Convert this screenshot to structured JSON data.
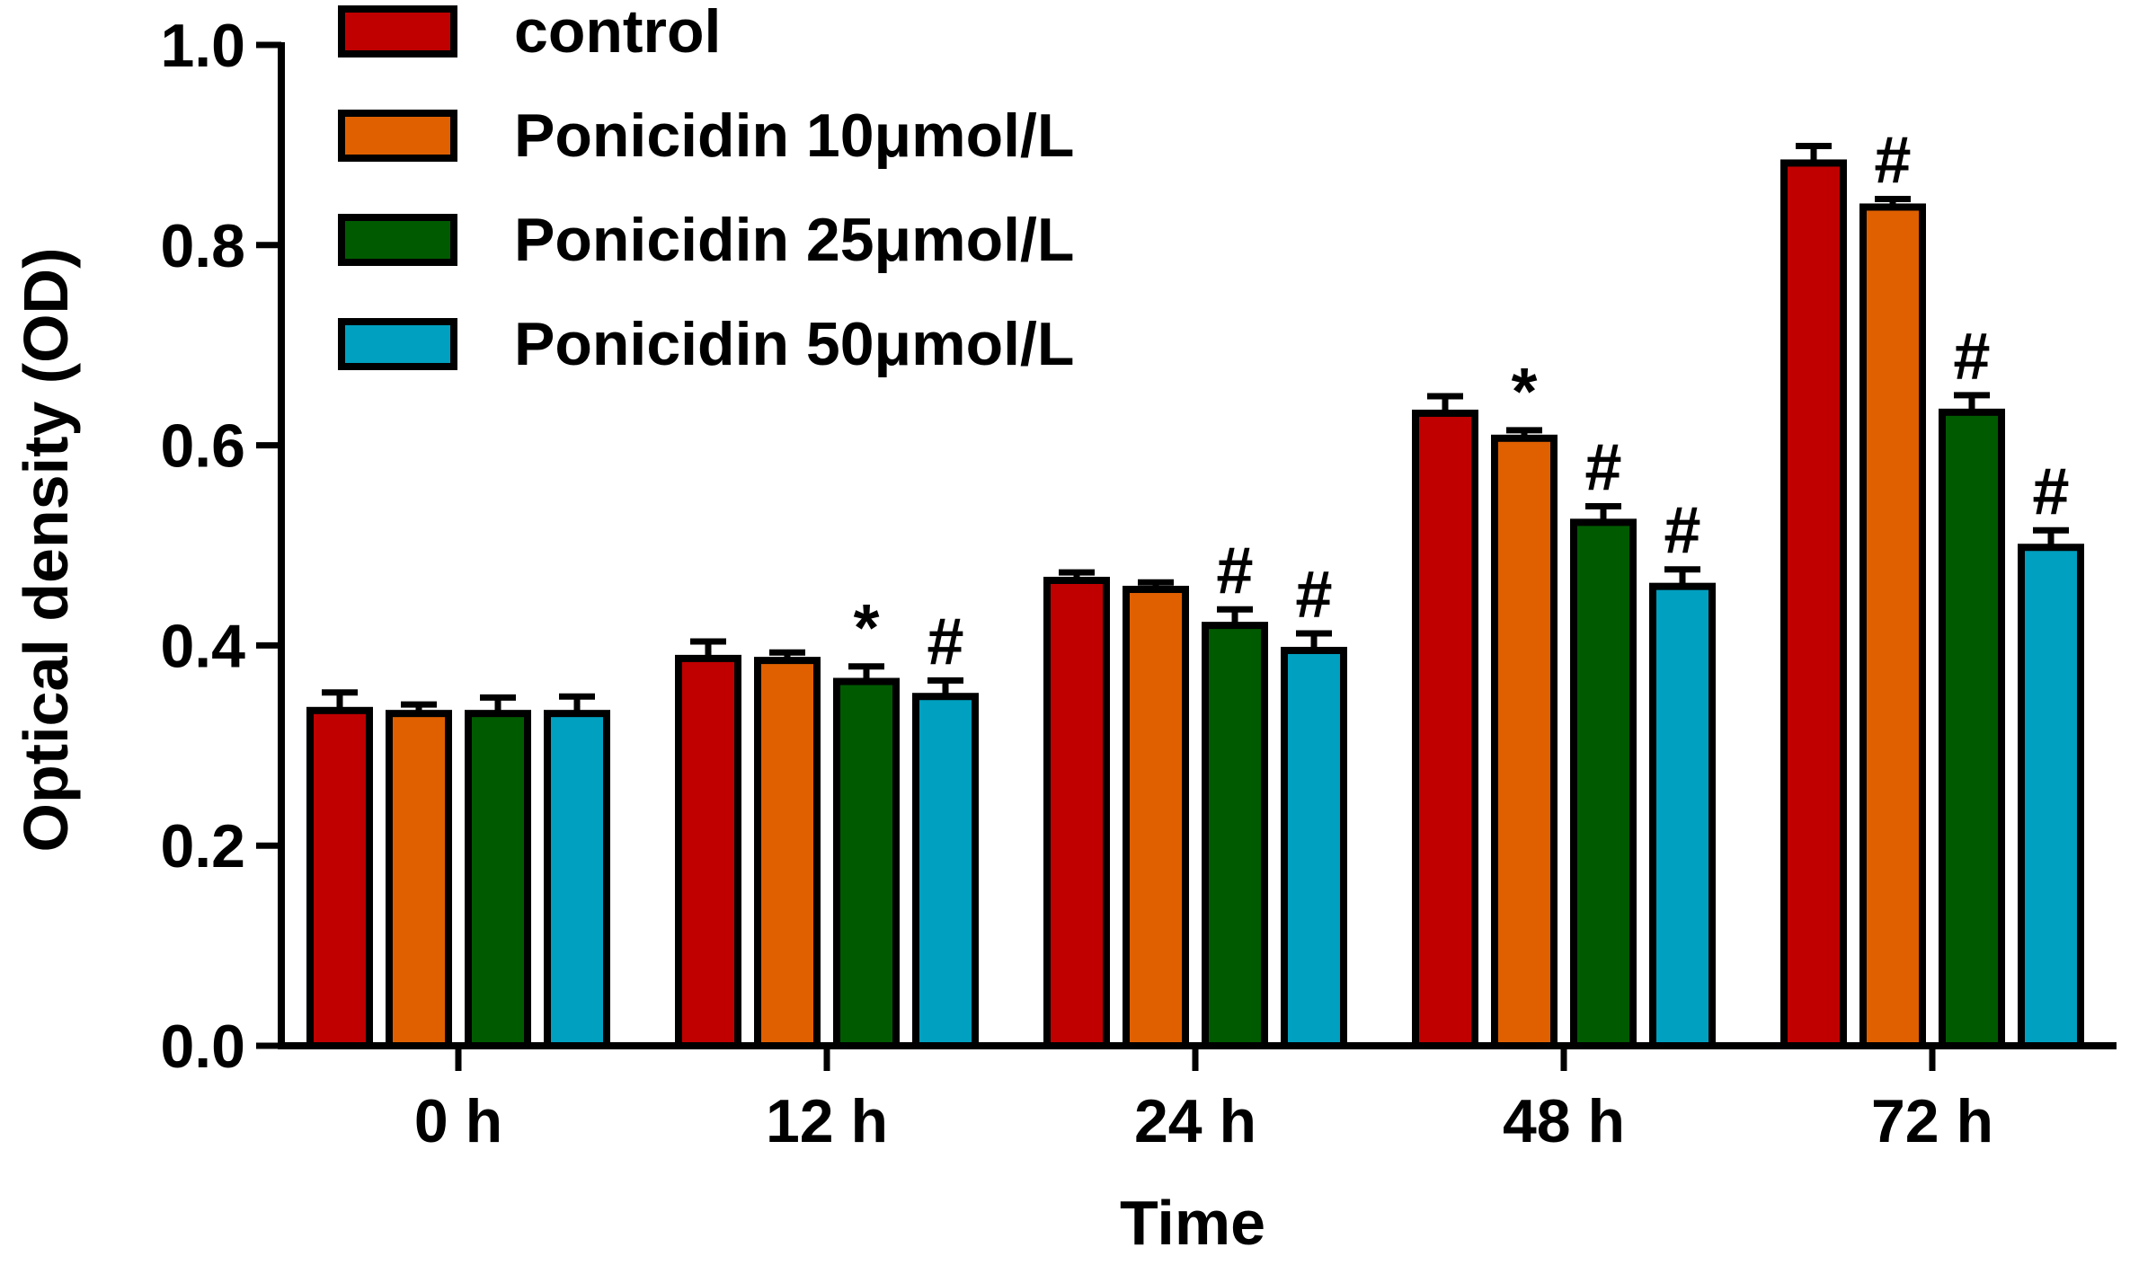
{
  "chart_data": {
    "type": "bar",
    "title": "",
    "xlabel": "Time",
    "ylabel": "Optical density (OD)",
    "ylim": [
      0,
      1.0
    ],
    "yticks": [
      "0.0",
      "0.2",
      "0.4",
      "0.6",
      "0.8",
      "1.0"
    ],
    "categories": [
      "0 h",
      "12 h",
      "24 h",
      "48 h",
      "72 h"
    ],
    "legend_position": "top-left",
    "series": [
      {
        "name": "control",
        "color": "#c00000",
        "values": [
          0.335,
          0.387,
          0.465,
          0.632,
          0.882
        ],
        "errors": [
          0.018,
          0.017,
          0.008,
          0.017,
          0.017
        ],
        "marks": [
          "",
          "",
          "",
          "",
          ""
        ]
      },
      {
        "name": "Ponicidin 10μmol/L",
        "color": "#e06000",
        "values": [
          0.332,
          0.385,
          0.456,
          0.607,
          0.838
        ],
        "errors": [
          0.009,
          0.008,
          0.007,
          0.008,
          0.008
        ],
        "marks": [
          "",
          "",
          "",
          "*",
          "#"
        ]
      },
      {
        "name": "Ponicidin 25μmol/L",
        "color": "#005a00",
        "values": [
          0.332,
          0.364,
          0.42,
          0.523,
          0.633
        ],
        "errors": [
          0.016,
          0.015,
          0.016,
          0.016,
          0.017
        ],
        "marks": [
          "",
          "*",
          "#",
          "#",
          "#"
        ]
      },
      {
        "name": "Ponicidin 50μmol/L",
        "color": "#00a0c0",
        "values": [
          0.332,
          0.349,
          0.395,
          0.459,
          0.498
        ],
        "errors": [
          0.017,
          0.016,
          0.017,
          0.017,
          0.017
        ],
        "marks": [
          "",
          "#",
          "#",
          "#",
          "#"
        ]
      }
    ]
  }
}
